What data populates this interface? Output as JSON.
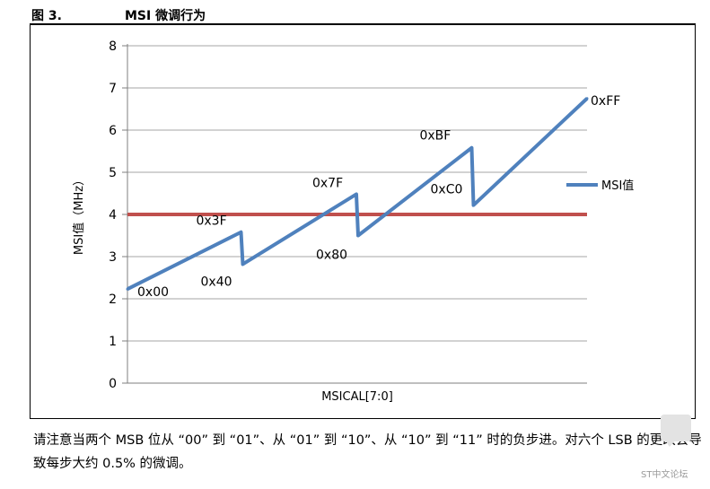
{
  "header": {
    "figure_number": "图 3.",
    "title": "MSI 微调行为"
  },
  "chart_data": {
    "type": "line",
    "title": "",
    "xlabel": "MSICAL[7:0]",
    "ylabel": "MSI值（MHz）",
    "ylim": [
      0,
      8
    ],
    "xlim": [
      0,
      255
    ],
    "yticks": [
      "0",
      "1",
      "2",
      "3",
      "4",
      "5",
      "6",
      "7",
      "8"
    ],
    "grid": true,
    "legend_position": "right",
    "series": [
      {
        "name": "MSI值",
        "color": "#4f81bd",
        "x": [
          0,
          63,
          64,
          127,
          128,
          191,
          192,
          255
        ],
        "values": [
          2.23,
          3.58,
          2.82,
          4.48,
          3.5,
          5.58,
          4.22,
          6.75
        ]
      }
    ],
    "reference_line": {
      "value": 4,
      "color": "#c0504d"
    },
    "annotations": [
      {
        "text": "0x00",
        "x": 0,
        "y": 2.23
      },
      {
        "text": "0x3F",
        "x": 63,
        "y": 3.58
      },
      {
        "text": "0x40",
        "x": 64,
        "y": 2.82
      },
      {
        "text": "0x7F",
        "x": 127,
        "y": 4.48
      },
      {
        "text": "0x80",
        "x": 128,
        "y": 3.5
      },
      {
        "text": "0xBF",
        "x": 191,
        "y": 5.58
      },
      {
        "text": "0xC0",
        "x": 192,
        "y": 4.22
      },
      {
        "text": "0xFF",
        "x": 255,
        "y": 6.75
      }
    ]
  },
  "caption": {
    "text": "请注意当两个 MSB 位从 “00” 到 “01”、从 “01” 到 “10”、从 “10” 到 “11” 时的负步进。对六个 LSB 的更改会导致每步大约 0.5% 的微调。"
  },
  "watermark": {
    "text": "ST中文论坛"
  }
}
